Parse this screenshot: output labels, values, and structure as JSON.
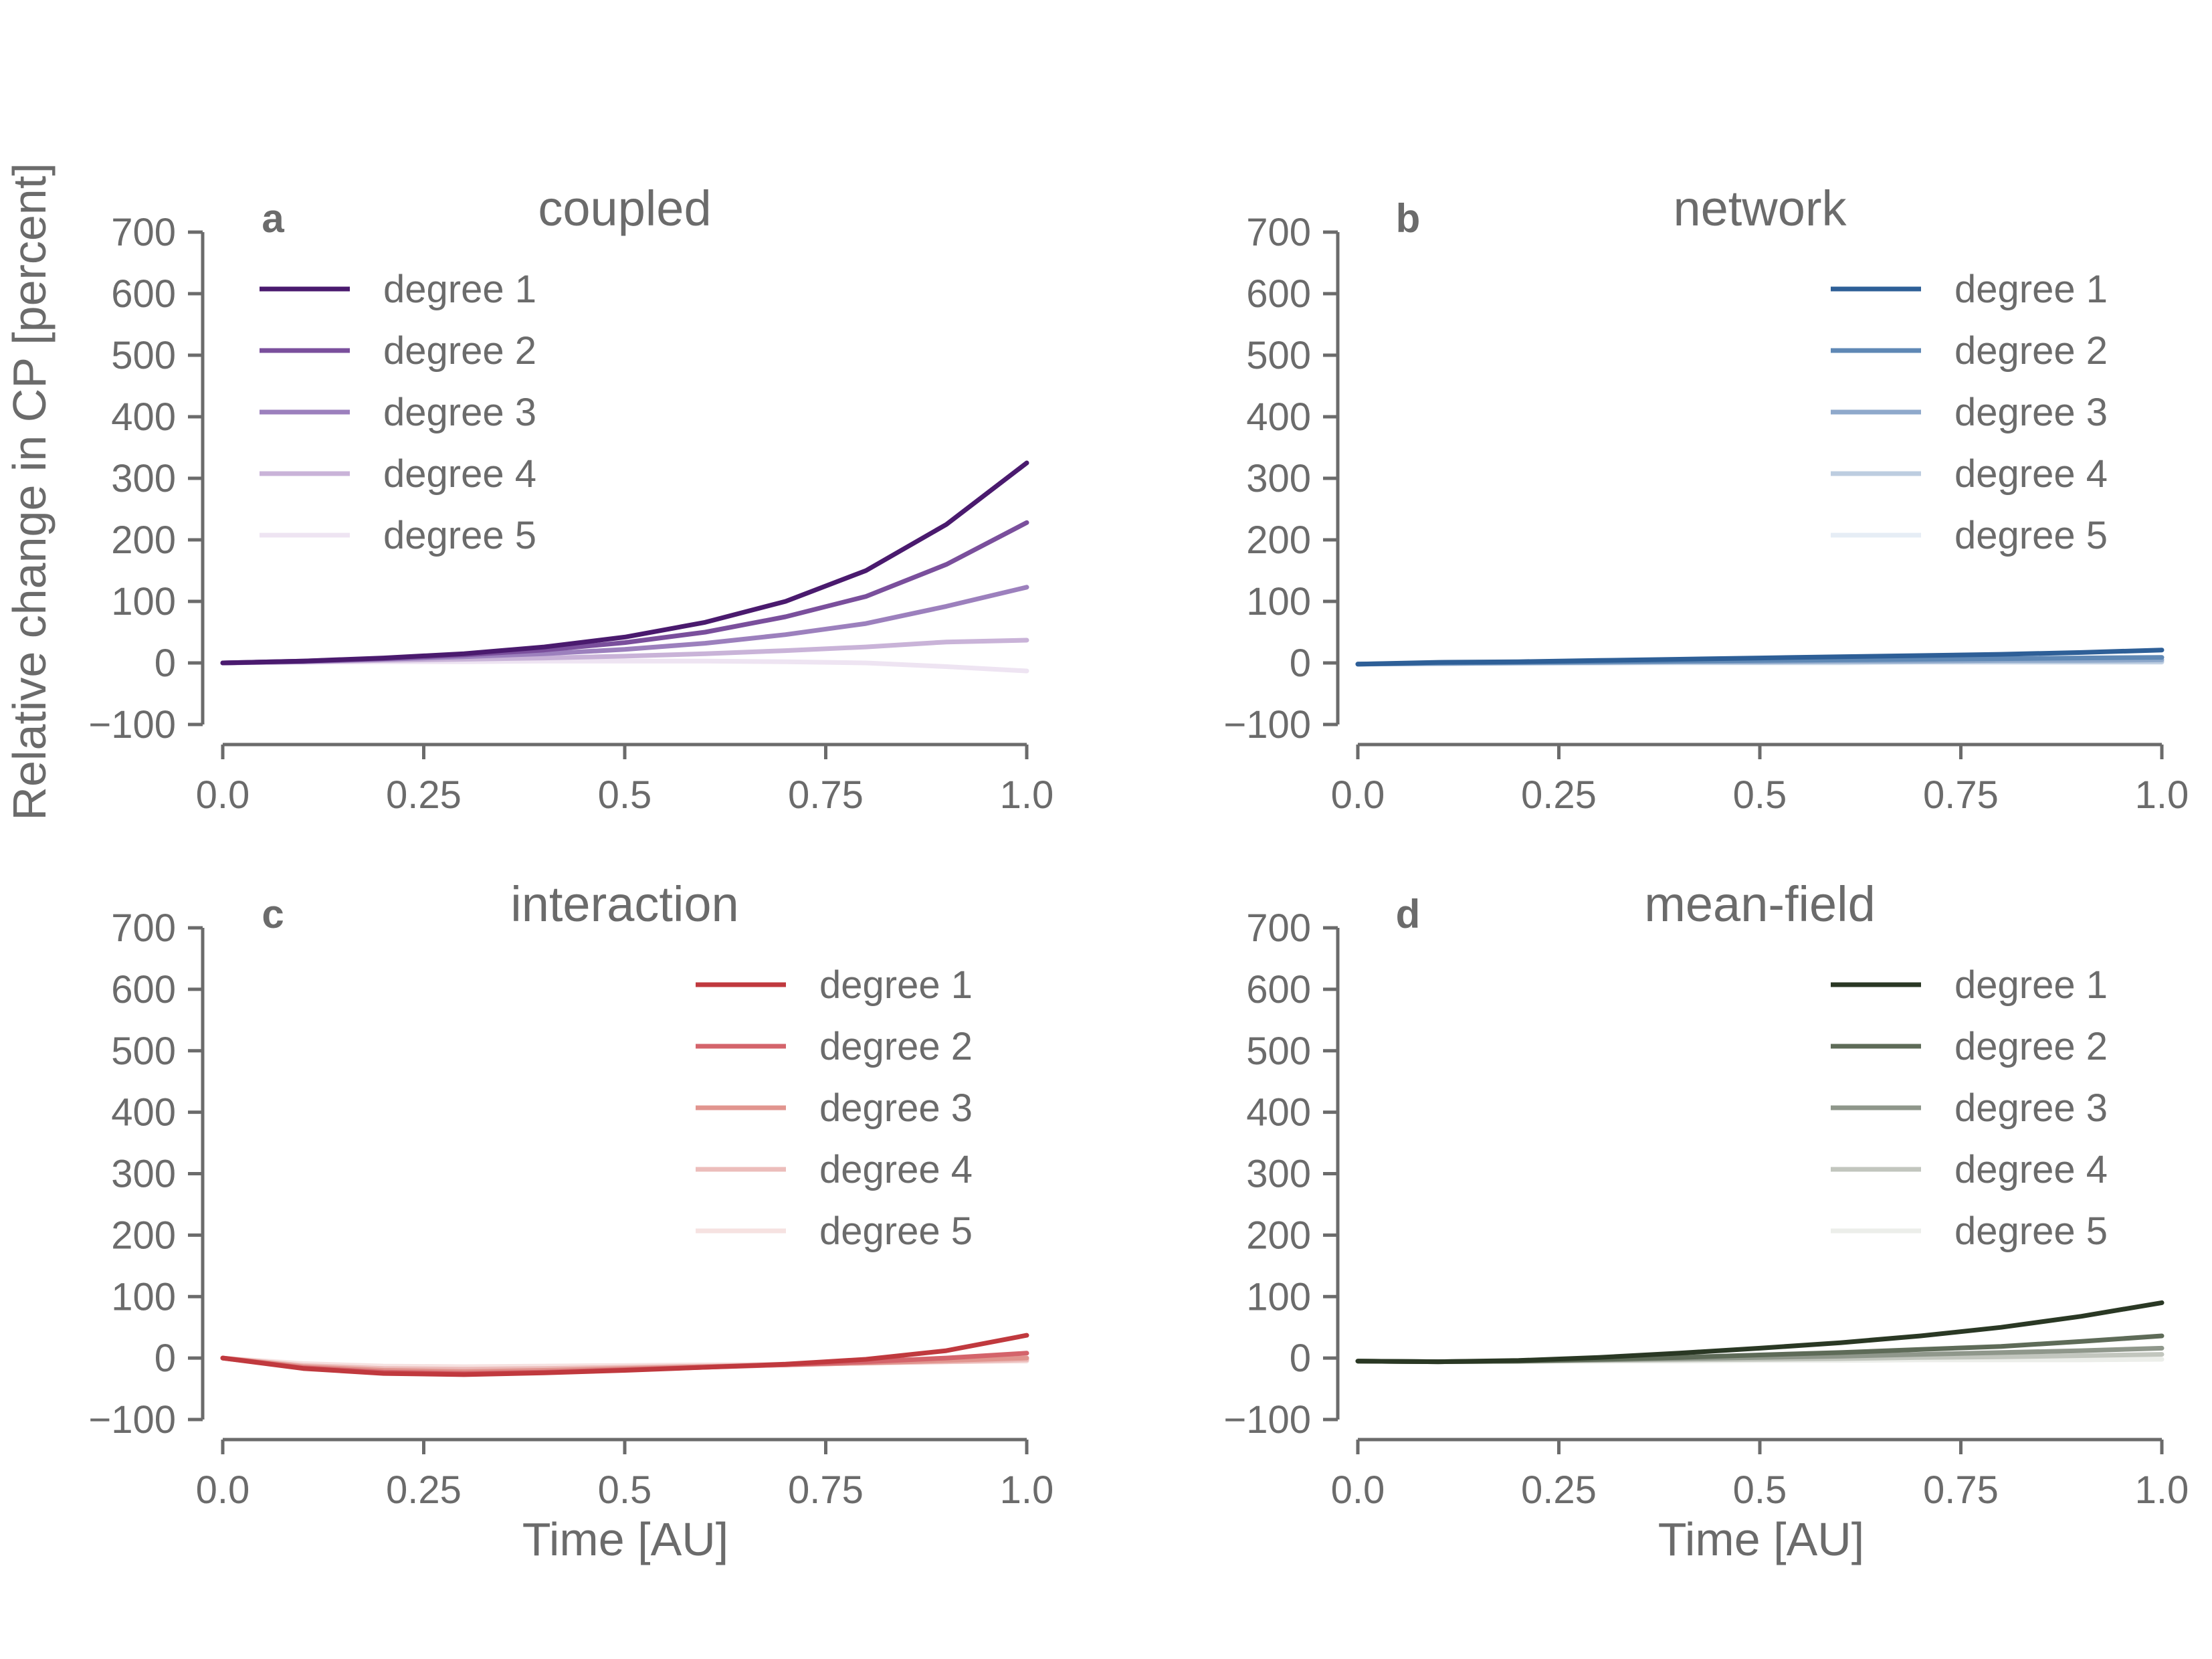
{
  "figure": {
    "ylabel": "Relative change in CP [percent]",
    "xlabel": "Time [AU]"
  },
  "chart_data": [
    {
      "type": "line",
      "letter": "a",
      "title": "coupled",
      "legend_position": "top-left",
      "xlim": [
        0,
        1
      ],
      "ylim": [
        -100,
        700
      ],
      "xticks": [
        "0.0",
        "0.25",
        "0.5",
        "0.75",
        "1.0"
      ],
      "yticks": [
        "700",
        "600",
        "500",
        "400",
        "300",
        "200",
        "100",
        "0",
        "−100"
      ],
      "x": [
        0,
        0.1,
        0.2,
        0.3,
        0.4,
        0.5,
        0.6,
        0.7,
        0.8,
        0.9,
        1.0
      ],
      "series": [
        {
          "name": "degree 1",
          "color": "#4a1a6e",
          "values": [
            0,
            3,
            8,
            15,
            26,
            42,
            66,
            100,
            150,
            225,
            325
          ]
        },
        {
          "name": "degree 2",
          "color": "#7a4f9c",
          "values": [
            0,
            3,
            7,
            13,
            21,
            33,
            50,
            75,
            108,
            160,
            228
          ]
        },
        {
          "name": "degree 3",
          "color": "#9c80bd",
          "values": [
            0,
            2,
            6,
            10,
            15,
            22,
            32,
            46,
            64,
            92,
            123
          ]
        },
        {
          "name": "degree 4",
          "color": "#c9b3d8",
          "values": [
            0,
            2,
            4,
            6,
            8,
            11,
            15,
            20,
            26,
            34,
            37
          ]
        },
        {
          "name": "degree 5",
          "color": "#eee4f2",
          "values": [
            0,
            1,
            2,
            2,
            3,
            3,
            3,
            2,
            0,
            -6,
            -13
          ]
        }
      ]
    },
    {
      "type": "line",
      "letter": "b",
      "title": "network",
      "legend_position": "top-right",
      "xlim": [
        0,
        1
      ],
      "ylim": [
        -100,
        700
      ],
      "xticks": [
        "0.0",
        "0.25",
        "0.5",
        "0.75",
        "1.0"
      ],
      "yticks": [
        "700",
        "600",
        "500",
        "400",
        "300",
        "200",
        "100",
        "0",
        "−100"
      ],
      "x": [
        0,
        0.1,
        0.2,
        0.3,
        0.4,
        0.5,
        0.6,
        0.7,
        0.8,
        0.9,
        1.0
      ],
      "series": [
        {
          "name": "degree 1",
          "color": "#2e5f97",
          "values": [
            -2,
            1,
            2,
            4,
            6,
            8,
            10,
            12,
            14,
            17,
            21
          ]
        },
        {
          "name": "degree 2",
          "color": "#5f88b5",
          "values": [
            -2,
            0,
            1,
            2,
            3,
            4,
            5,
            6,
            7,
            8,
            9
          ]
        },
        {
          "name": "degree 3",
          "color": "#8fa9cb",
          "values": [
            -2,
            -1,
            0,
            1,
            2,
            2,
            3,
            3,
            4,
            4,
            5
          ]
        },
        {
          "name": "degree 4",
          "color": "#bdcde0",
          "values": [
            -2,
            -1,
            0,
            0,
            1,
            1,
            1,
            2,
            2,
            2,
            2
          ]
        },
        {
          "name": "degree 5",
          "color": "#e6edf5",
          "values": [
            -2,
            -1,
            -1,
            0,
            0,
            0,
            0,
            1,
            1,
            1,
            1
          ]
        }
      ]
    },
    {
      "type": "line",
      "letter": "c",
      "title": "interaction",
      "legend_position": "top-right",
      "xlim": [
        0,
        1
      ],
      "ylim": [
        -100,
        700
      ],
      "xticks": [
        "0.0",
        "0.25",
        "0.5",
        "0.75",
        "1.0"
      ],
      "yticks": [
        "700",
        "600",
        "500",
        "400",
        "300",
        "200",
        "100",
        "0",
        "−100"
      ],
      "x": [
        0,
        0.1,
        0.2,
        0.3,
        0.4,
        0.5,
        0.6,
        0.7,
        0.8,
        0.9,
        1.0
      ],
      "series": [
        {
          "name": "degree 1",
          "color": "#c0393e",
          "values": [
            0,
            -17,
            -25,
            -27,
            -24,
            -20,
            -15,
            -10,
            -2,
            12,
            37
          ]
        },
        {
          "name": "degree 2",
          "color": "#d4646b",
          "values": [
            0,
            -16,
            -23,
            -25,
            -23,
            -19,
            -15,
            -11,
            -6,
            0,
            8
          ]
        },
        {
          "name": "degree 3",
          "color": "#e1958f",
          "values": [
            0,
            -14,
            -20,
            -22,
            -20,
            -17,
            -14,
            -11,
            -8,
            -4,
            0
          ]
        },
        {
          "name": "degree 4",
          "color": "#ecbdbb",
          "values": [
            0,
            -12,
            -17,
            -18,
            -17,
            -15,
            -13,
            -11,
            -8,
            -6,
            -3
          ]
        },
        {
          "name": "degree 5",
          "color": "#f6e2e1",
          "values": [
            0,
            -9,
            -13,
            -14,
            -13,
            -12,
            -11,
            -10,
            -8,
            -6,
            -5
          ]
        }
      ]
    },
    {
      "type": "line",
      "letter": "d",
      "title": "mean-field",
      "legend_position": "top-right",
      "xlim": [
        0,
        1
      ],
      "ylim": [
        -100,
        700
      ],
      "xticks": [
        "0.0",
        "0.25",
        "0.5",
        "0.75",
        "1.0"
      ],
      "yticks": [
        "700",
        "600",
        "500",
        "400",
        "300",
        "200",
        "100",
        "0",
        "−100"
      ],
      "x": [
        0,
        0.1,
        0.2,
        0.3,
        0.4,
        0.5,
        0.6,
        0.7,
        0.8,
        0.9,
        1.0
      ],
      "series": [
        {
          "name": "degree 1",
          "color": "#2a3824",
          "values": [
            -5,
            -6,
            -4,
            1,
            8,
            16,
            25,
            36,
            50,
            68,
            90
          ]
        },
        {
          "name": "degree 2",
          "color": "#5e6b58",
          "values": [
            -5,
            -6,
            -5,
            -2,
            1,
            5,
            9,
            14,
            19,
            27,
            36
          ]
        },
        {
          "name": "degree 3",
          "color": "#8f978b",
          "values": [
            -5,
            -6,
            -5,
            -3,
            -1,
            1,
            3,
            6,
            9,
            12,
            16
          ]
        },
        {
          "name": "degree 4",
          "color": "#c2c6be",
          "values": [
            -5,
            -6,
            -5,
            -4,
            -3,
            -2,
            -1,
            1,
            2,
            4,
            6
          ]
        },
        {
          "name": "degree 5",
          "color": "#eceeea",
          "values": [
            -5,
            -6,
            -6,
            -5,
            -5,
            -4,
            -4,
            -3,
            -3,
            -3,
            -2
          ]
        }
      ]
    }
  ]
}
